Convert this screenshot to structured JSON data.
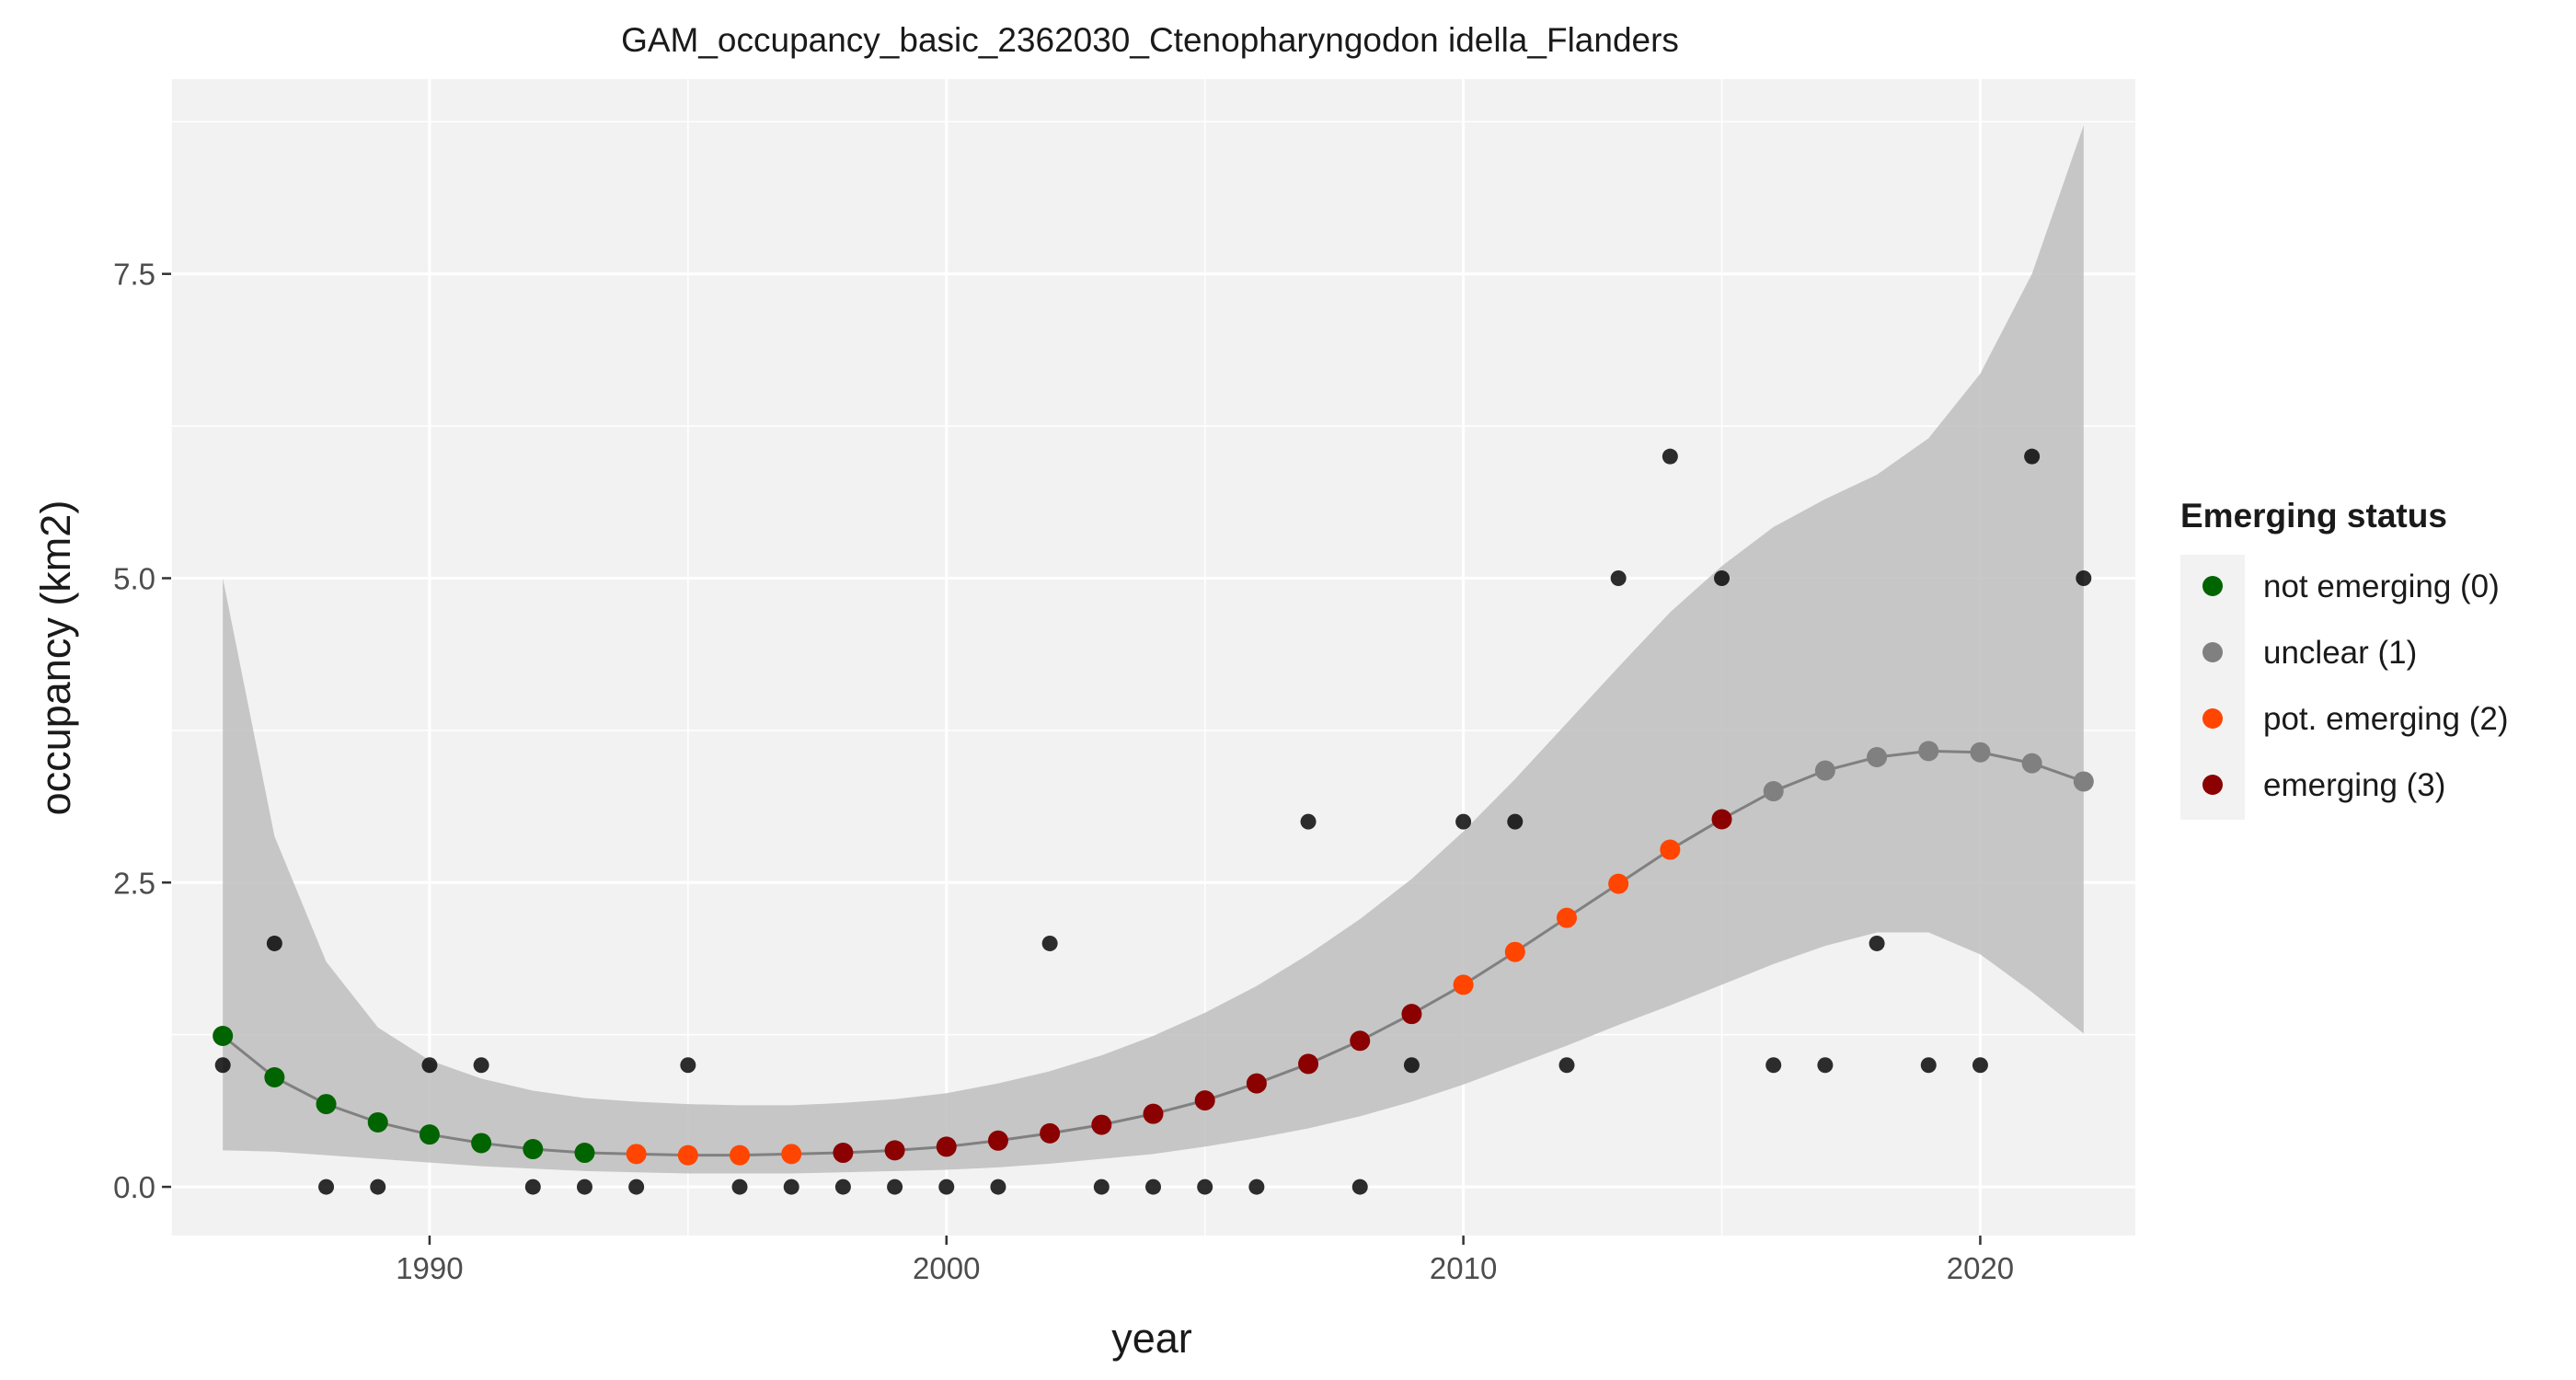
{
  "chart_data": {
    "type": "scatter",
    "title": "GAM_occupancy_basic_2362030_Ctenopharyngodon idella_Flanders",
    "xlabel": "year",
    "ylabel": "occupancy (km2)",
    "xlim": [
      1985,
      2023
    ],
    "ylim": [
      -0.4,
      9.1
    ],
    "x_ticks": [
      1990,
      2000,
      2010,
      2020
    ],
    "x_tick_labels": [
      "1990",
      "2000",
      "2010",
      "2020"
    ],
    "y_ticks": [
      0,
      2.5,
      5,
      7.5
    ],
    "y_tick_labels": [
      "0.0",
      "2.5",
      "5.0",
      "7.5"
    ],
    "grid": true,
    "legend": {
      "title": "Emerging status",
      "placement": "right",
      "entries": [
        {
          "label": "not emerging (0)",
          "color": "#006400"
        },
        {
          "label": "unclear (1)",
          "color": "#808080"
        },
        {
          "label": "pot. emerging (2)",
          "color": "#FF4500"
        },
        {
          "label": "emerging (3)",
          "color": "#8B0000"
        }
      ]
    },
    "status_colors": [
      "#006400",
      "#808080",
      "#FF4500",
      "#8B0000"
    ],
    "observed": {
      "color": "#000000",
      "points": [
        {
          "year": 1986,
          "value": 1
        },
        {
          "year": 1987,
          "value": 2
        },
        {
          "year": 1988,
          "value": 0
        },
        {
          "year": 1989,
          "value": 0
        },
        {
          "year": 1990,
          "value": 1
        },
        {
          "year": 1991,
          "value": 1
        },
        {
          "year": 1992,
          "value": 0
        },
        {
          "year": 1993,
          "value": 0
        },
        {
          "year": 1994,
          "value": 0
        },
        {
          "year": 1995,
          "value": 1
        },
        {
          "year": 1996,
          "value": 0
        },
        {
          "year": 1997,
          "value": 0
        },
        {
          "year": 1998,
          "value": 0
        },
        {
          "year": 1999,
          "value": 0
        },
        {
          "year": 2000,
          "value": 0
        },
        {
          "year": 2001,
          "value": 0
        },
        {
          "year": 2002,
          "value": 2
        },
        {
          "year": 2003,
          "value": 0
        },
        {
          "year": 2004,
          "value": 0
        },
        {
          "year": 2005,
          "value": 0
        },
        {
          "year": 2006,
          "value": 0
        },
        {
          "year": 2007,
          "value": 3
        },
        {
          "year": 2008,
          "value": 0
        },
        {
          "year": 2009,
          "value": 1
        },
        {
          "year": 2010,
          "value": 3
        },
        {
          "year": 2011,
          "value": 3
        },
        {
          "year": 2012,
          "value": 1
        },
        {
          "year": 2013,
          "value": 5
        },
        {
          "year": 2014,
          "value": 6
        },
        {
          "year": 2015,
          "value": 5
        },
        {
          "year": 2016,
          "value": 1
        },
        {
          "year": 2017,
          "value": 1
        },
        {
          "year": 2018,
          "value": 2
        },
        {
          "year": 2019,
          "value": 1
        },
        {
          "year": 2020,
          "value": 1
        },
        {
          "year": 2021,
          "value": 6
        },
        {
          "year": 2022,
          "value": 5
        }
      ]
    },
    "fitted": {
      "line_color": "#808080",
      "ribbon_color": "#BEBEBE",
      "points": [
        {
          "year": 1986,
          "fit": 1.24,
          "lcl": 0.3,
          "ucl": 5.0,
          "status": 0
        },
        {
          "year": 1987,
          "fit": 0.9,
          "lcl": 0.29,
          "ucl": 2.88,
          "status": 0
        },
        {
          "year": 1988,
          "fit": 0.68,
          "lcl": 0.26,
          "ucl": 1.85,
          "status": 0
        },
        {
          "year": 1989,
          "fit": 0.53,
          "lcl": 0.23,
          "ucl": 1.31,
          "status": 0
        },
        {
          "year": 1990,
          "fit": 0.43,
          "lcl": 0.2,
          "ucl": 1.04,
          "status": 0
        },
        {
          "year": 1991,
          "fit": 0.36,
          "lcl": 0.17,
          "ucl": 0.89,
          "status": 0
        },
        {
          "year": 1992,
          "fit": 0.31,
          "lcl": 0.15,
          "ucl": 0.79,
          "status": 0
        },
        {
          "year": 1993,
          "fit": 0.28,
          "lcl": 0.13,
          "ucl": 0.73,
          "status": 0
        },
        {
          "year": 1994,
          "fit": 0.27,
          "lcl": 0.12,
          "ucl": 0.7,
          "status": 2
        },
        {
          "year": 1995,
          "fit": 0.26,
          "lcl": 0.11,
          "ucl": 0.68,
          "status": 2
        },
        {
          "year": 1996,
          "fit": 0.26,
          "lcl": 0.11,
          "ucl": 0.67,
          "status": 2
        },
        {
          "year": 1997,
          "fit": 0.27,
          "lcl": 0.11,
          "ucl": 0.67,
          "status": 2
        },
        {
          "year": 1998,
          "fit": 0.28,
          "lcl": 0.12,
          "ucl": 0.69,
          "status": 3
        },
        {
          "year": 1999,
          "fit": 0.3,
          "lcl": 0.13,
          "ucl": 0.72,
          "status": 3
        },
        {
          "year": 2000,
          "fit": 0.33,
          "lcl": 0.14,
          "ucl": 0.77,
          "status": 3
        },
        {
          "year": 2001,
          "fit": 0.38,
          "lcl": 0.16,
          "ucl": 0.85,
          "status": 3
        },
        {
          "year": 2002,
          "fit": 0.44,
          "lcl": 0.19,
          "ucl": 0.95,
          "status": 3
        },
        {
          "year": 2003,
          "fit": 0.51,
          "lcl": 0.23,
          "ucl": 1.08,
          "status": 3
        },
        {
          "year": 2004,
          "fit": 0.6,
          "lcl": 0.27,
          "ucl": 1.24,
          "status": 3
        },
        {
          "year": 2005,
          "fit": 0.71,
          "lcl": 0.33,
          "ucl": 1.43,
          "status": 3
        },
        {
          "year": 2006,
          "fit": 0.85,
          "lcl": 0.4,
          "ucl": 1.65,
          "status": 3
        },
        {
          "year": 2007,
          "fit": 1.01,
          "lcl": 0.48,
          "ucl": 1.91,
          "status": 3
        },
        {
          "year": 2008,
          "fit": 1.2,
          "lcl": 0.58,
          "ucl": 2.2,
          "status": 3
        },
        {
          "year": 2009,
          "fit": 1.42,
          "lcl": 0.7,
          "ucl": 2.53,
          "status": 3
        },
        {
          "year": 2010,
          "fit": 1.66,
          "lcl": 0.84,
          "ucl": 2.92,
          "status": 2
        },
        {
          "year": 2011,
          "fit": 1.93,
          "lcl": 1.0,
          "ucl": 3.35,
          "status": 2
        },
        {
          "year": 2012,
          "fit": 2.21,
          "lcl": 1.16,
          "ucl": 3.81,
          "status": 2
        },
        {
          "year": 2013,
          "fit": 2.49,
          "lcl": 1.33,
          "ucl": 4.27,
          "status": 2
        },
        {
          "year": 2014,
          "fit": 2.77,
          "lcl": 1.49,
          "ucl": 4.72,
          "status": 2
        },
        {
          "year": 2015,
          "fit": 3.02,
          "lcl": 1.66,
          "ucl": 5.1,
          "status": 3
        },
        {
          "year": 2016,
          "fit": 3.25,
          "lcl": 1.83,
          "ucl": 5.42,
          "status": 1
        },
        {
          "year": 2017,
          "fit": 3.42,
          "lcl": 1.98,
          "ucl": 5.65,
          "status": 1
        },
        {
          "year": 2018,
          "fit": 3.53,
          "lcl": 2.09,
          "ucl": 5.85,
          "status": 1
        },
        {
          "year": 2019,
          "fit": 3.58,
          "lcl": 2.09,
          "ucl": 6.15,
          "status": 1
        },
        {
          "year": 2020,
          "fit": 3.57,
          "lcl": 1.91,
          "ucl": 6.68,
          "status": 1
        },
        {
          "year": 2021,
          "fit": 3.48,
          "lcl": 1.6,
          "ucl": 7.5,
          "status": 1
        },
        {
          "year": 2022,
          "fit": 3.33,
          "lcl": 1.26,
          "ucl": 8.72,
          "status": 1
        }
      ]
    }
  }
}
